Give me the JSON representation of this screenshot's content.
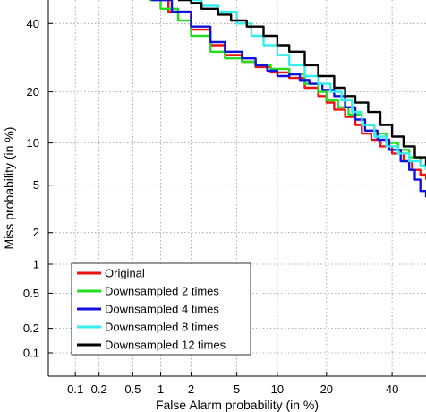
{
  "chart_data": {
    "type": "line",
    "title": "",
    "xlabel": "False Alarm probability (in %)",
    "ylabel": "Miss probability (in %)",
    "x_scale": "normal-deviate",
    "y_scale": "normal-deviate",
    "xlim": [
      0.043,
      52
    ],
    "ylim": [
      0.05,
      48
    ],
    "x_ticks": [
      0.1,
      0.2,
      0.5,
      1,
      2,
      5,
      10,
      20,
      40
    ],
    "x_tick_labels": [
      "0.1",
      "0.2",
      "0.5",
      "1",
      "2",
      "5",
      "10",
      "20",
      "40"
    ],
    "y_ticks": [
      0.1,
      0.2,
      0.5,
      1,
      2,
      5,
      10,
      20,
      40
    ],
    "y_tick_labels": [
      "0.1",
      "0.2",
      "0.5",
      "1",
      "2",
      "5",
      "10",
      "20",
      "40"
    ],
    "grid": true,
    "legend_position": "bottom-left",
    "series": [
      {
        "name": "Original",
        "color": "#ee1111",
        "x": [
          0.8,
          1.2,
          2.0,
          3.0,
          4.0,
          5.5,
          7.0,
          9.0,
          12.0,
          15.0,
          18.0,
          20.0,
          22.0,
          25.0,
          28.0,
          30.0,
          33.0,
          36.0,
          40.0,
          44.0,
          47.0,
          50.0,
          52.0
        ],
        "y": [
          48.0,
          44.0,
          38.0,
          33.0,
          30.0,
          28.0,
          26.5,
          25.0,
          23.5,
          21.0,
          19.0,
          17.5,
          16.0,
          14.5,
          13.0,
          11.5,
          10.5,
          9.5,
          8.5,
          7.5,
          6.5,
          6.0,
          5.5
        ]
      },
      {
        "name": "Downsampled 2 times",
        "color": "#22dd22",
        "x": [
          0.75,
          1.0,
          1.5,
          2.0,
          3.0,
          4.0,
          5.5,
          7.0,
          9.0,
          12.0,
          15.0,
          18.0,
          20.0,
          23.0,
          26.0,
          30.0,
          34.0,
          38.0,
          42.0,
          46.0,
          50.0,
          52.0
        ],
        "y": [
          48.0,
          45.0,
          41.0,
          36.0,
          31.0,
          29.0,
          28.0,
          27.0,
          26.0,
          24.5,
          22.0,
          20.0,
          18.0,
          16.5,
          15.0,
          13.0,
          11.5,
          10.0,
          9.0,
          8.0,
          7.0,
          6.5
        ]
      },
      {
        "name": "Downsampled 4 times",
        "color": "#1111dd",
        "x": [
          0.8,
          1.3,
          2.0,
          3.0,
          4.0,
          5.5,
          7.0,
          8.5,
          10.0,
          12.0,
          14.0,
          16.0,
          19.0,
          22.0,
          25.0,
          28.0,
          31.0,
          35.0,
          39.0,
          43.0,
          46.0,
          48.0,
          50.0,
          52.0
        ],
        "y": [
          48.0,
          44.0,
          39.0,
          34.0,
          31.0,
          29.0,
          27.0,
          25.5,
          24.0,
          24.5,
          23.0,
          22.0,
          20.5,
          19.0,
          16.5,
          14.0,
          12.0,
          10.5,
          9.0,
          7.5,
          6.5,
          5.5,
          4.5,
          4.0
        ]
      },
      {
        "name": "Downsampled 8 times",
        "color": "#33eeee",
        "x": [
          1.8,
          2.5,
          3.5,
          5.0,
          6.5,
          8.0,
          10.0,
          12.0,
          15.0,
          18.0,
          21.0,
          24.0,
          27.0,
          30.0,
          34.0,
          38.0,
          42.0,
          46.0,
          50.0,
          52.0
        ],
        "y": [
          48.0,
          46.0,
          44.0,
          40.0,
          36.0,
          33.0,
          30.0,
          27.0,
          24.0,
          22.0,
          20.0,
          18.0,
          15.5,
          13.0,
          11.0,
          9.5,
          8.5,
          7.5,
          7.0,
          6.5
        ]
      },
      {
        "name": "Downsampled 12 times",
        "color": "#000000",
        "x": [
          1.5,
          2.0,
          2.5,
          3.5,
          4.5,
          6.0,
          8.0,
          10.0,
          12.0,
          15.0,
          18.0,
          22.0,
          25.0,
          28.0,
          32.0,
          36.0,
          40.0,
          44.0,
          48.0,
          52.0
        ],
        "y": [
          48.0,
          47.0,
          45.0,
          43.0,
          41.0,
          39.0,
          36.0,
          33.0,
          31.0,
          27.0,
          24.0,
          21.0,
          19.0,
          17.5,
          15.5,
          13.0,
          11.0,
          9.5,
          8.0,
          7.0
        ]
      }
    ]
  }
}
